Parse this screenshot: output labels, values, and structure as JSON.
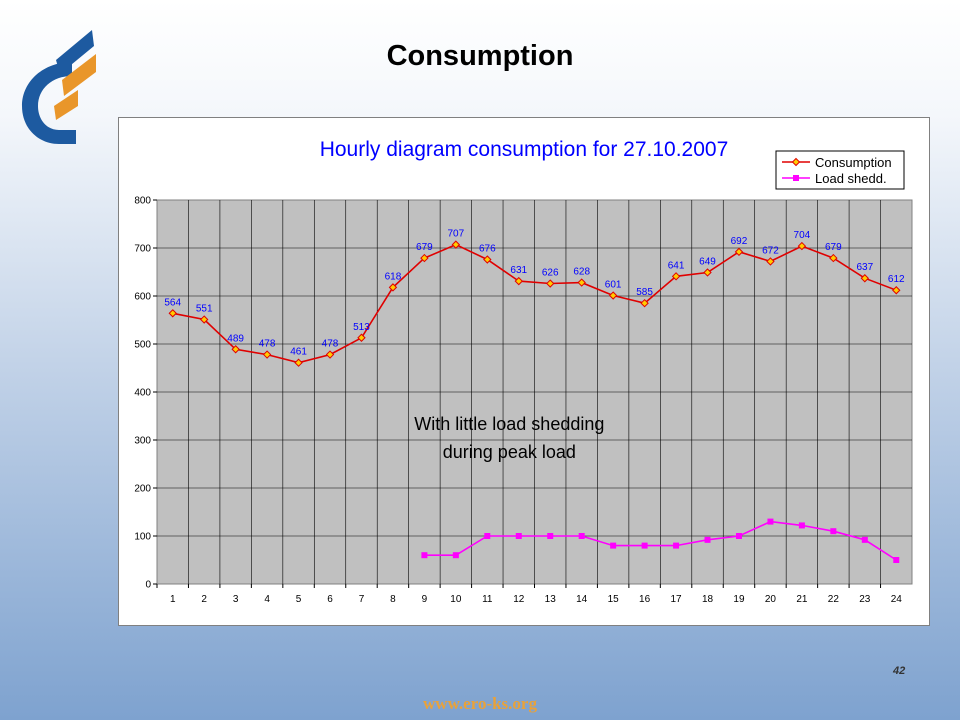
{
  "slide": {
    "title": "Consumption",
    "page_number": "42",
    "footer_url": "www.ero-ks.org"
  },
  "colors": {
    "consumption_line": "#e00000",
    "consumption_marker_fill": "#ffcc00",
    "load_shed_line": "#ff00ff",
    "plot_background": "#c0c0c0",
    "chart_title": "#0000ff",
    "data_label": "#0000ff",
    "logo_blue": "#1d5aa0",
    "logo_orange": "#e9962a"
  },
  "chart_data": {
    "type": "line",
    "title": "Hourly diagram consumption for 27.10.2007",
    "xlabel": "",
    "ylabel": "",
    "categories": [
      "1",
      "2",
      "3",
      "4",
      "5",
      "6",
      "7",
      "8",
      "9",
      "10",
      "11",
      "12",
      "13",
      "14",
      "15",
      "16",
      "17",
      "18",
      "19",
      "20",
      "21",
      "22",
      "23",
      "24"
    ],
    "ylim": [
      0,
      800
    ],
    "yticks": [
      "0",
      "100",
      "200",
      "300",
      "400",
      "500",
      "600",
      "700",
      "800"
    ],
    "grid": true,
    "legend_position": "top-right",
    "series": [
      {
        "name": "Consumption",
        "values": [
          564,
          551,
          489,
          478,
          461,
          478,
          513,
          618,
          679,
          707,
          676,
          631,
          626,
          628,
          601,
          585,
          641,
          649,
          692,
          672,
          704,
          679,
          637,
          612
        ],
        "data_labels": [
          "564",
          "551",
          "489",
          "478",
          "461",
          "478",
          "513",
          "618",
          "679",
          "707",
          "676",
          "631",
          "626",
          "628",
          "601",
          "585",
          "641",
          "649",
          "692",
          "672",
          "704",
          "679",
          "637",
          "612"
        ]
      },
      {
        "name": "Load shedd.",
        "values": [
          null,
          null,
          null,
          null,
          null,
          null,
          null,
          null,
          60,
          60,
          100,
          100,
          100,
          100,
          80,
          80,
          80,
          92,
          100,
          130,
          122,
          110,
          92,
          50
        ]
      }
    ],
    "annotation": [
      "With little load shedding",
      "during peak load"
    ]
  }
}
